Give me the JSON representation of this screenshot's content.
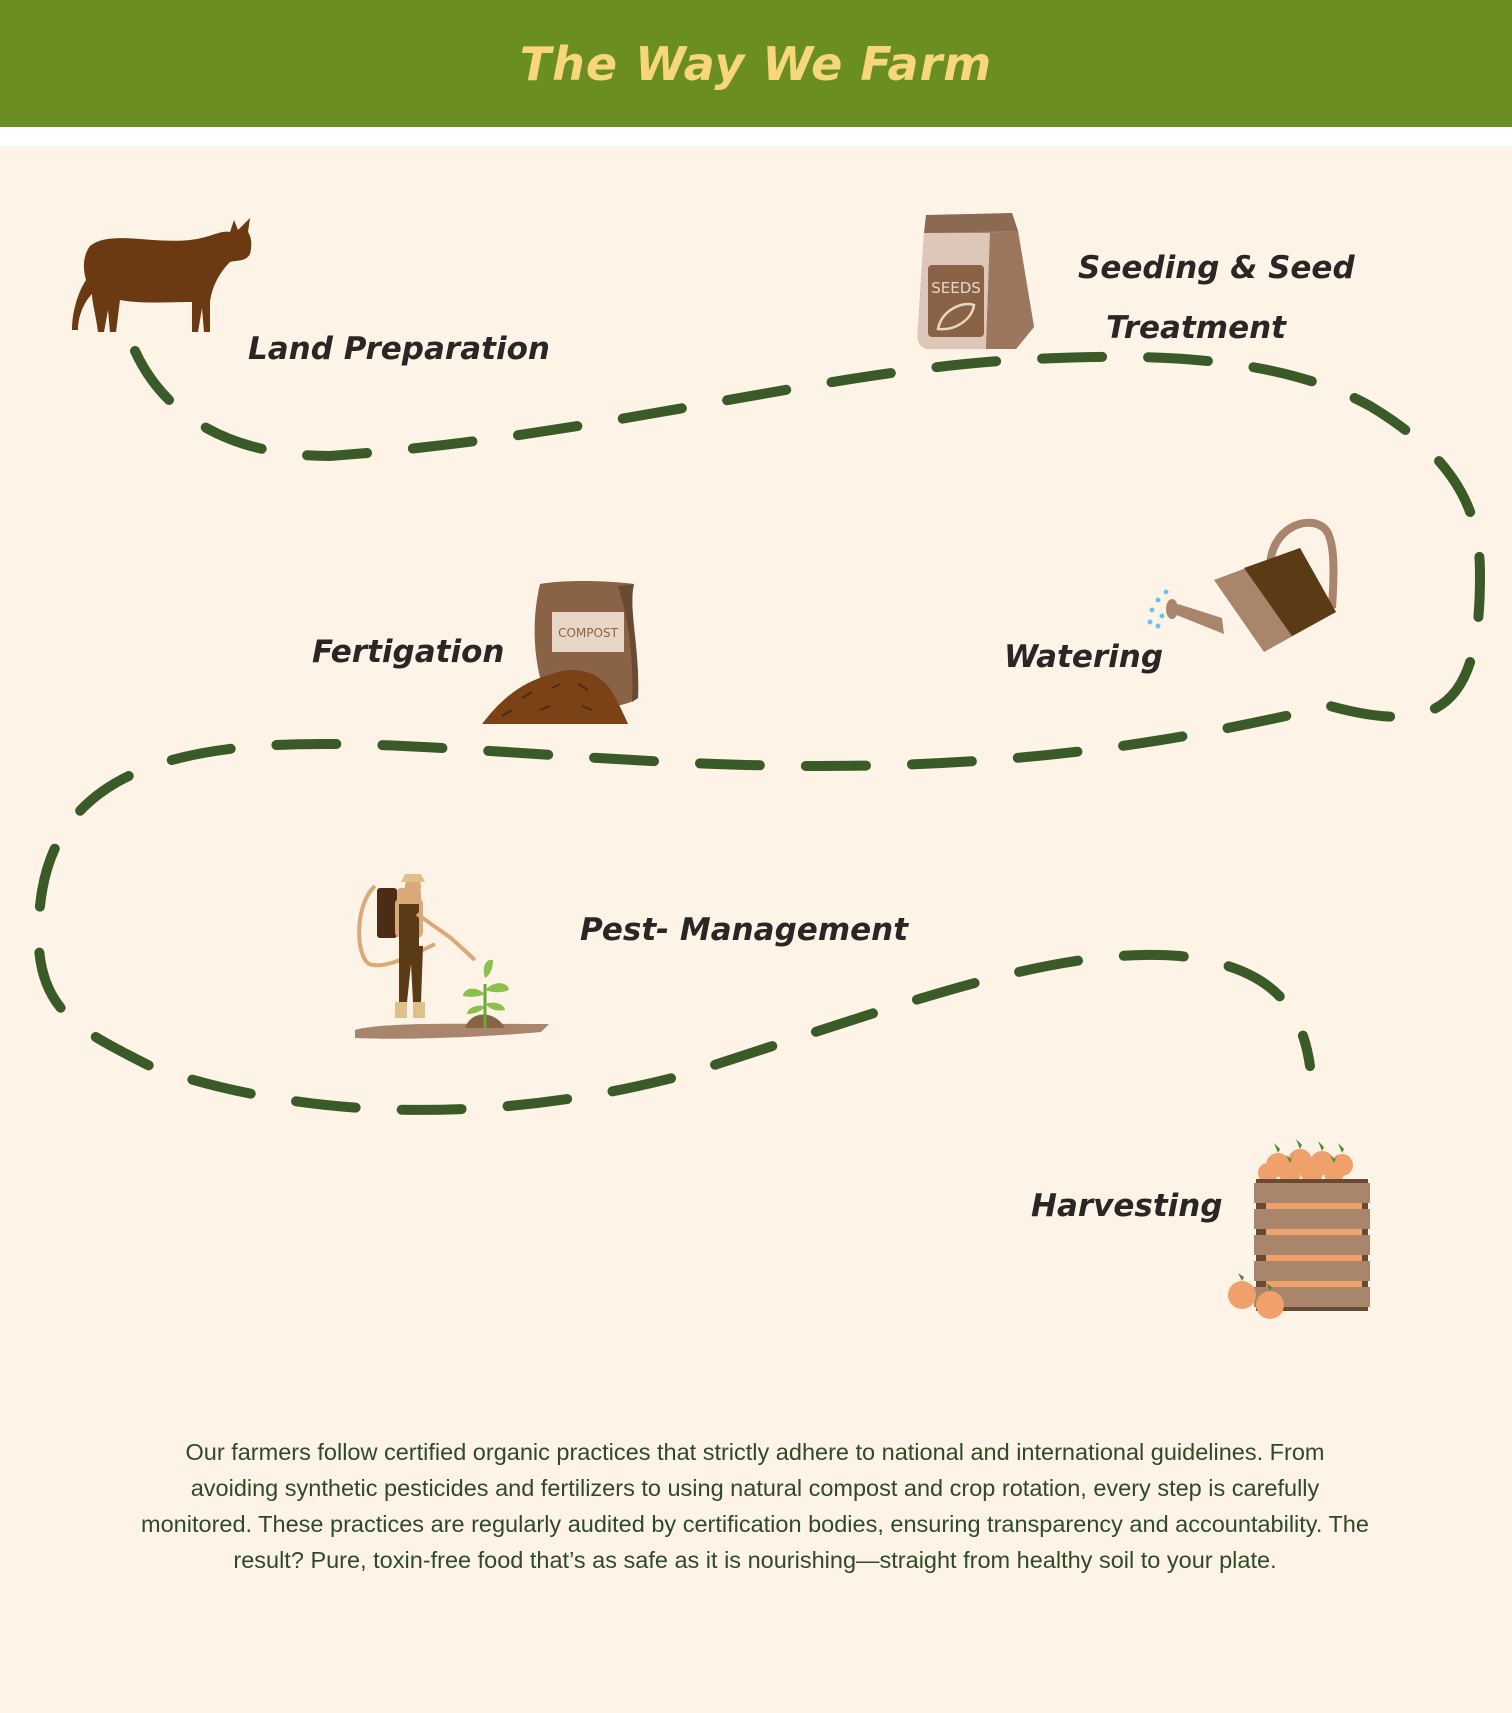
{
  "header": {
    "title": "The Way We Farm"
  },
  "steps": [
    {
      "label": "Land Preparation",
      "icon": "cow-icon"
    },
    {
      "label": "Seeding & Seed",
      "label2": "Treatment",
      "icon": "seed-bag-icon"
    },
    {
      "label": "Watering",
      "icon": "watering-can-icon"
    },
    {
      "label": "Fertigation",
      "icon": "compost-bag-icon"
    },
    {
      "label": "Pest- Management",
      "icon": "farmer-spraying-icon"
    },
    {
      "label": "Harvesting",
      "icon": "harvest-crate-icon"
    }
  ],
  "illustrations": {
    "seeds_text": "SEEDS",
    "compost_text": "COMPOST"
  },
  "description": "Our farmers follow certified organic practices that strictly adhere to national and international guidelines. From avoiding synthetic pesticides and fertilizers to using natural compost and crop rotation, every step is carefully monitored. These practices are regularly audited by certification bodies, ensuring transparency and accountability. The result? Pure, toxin-free food that’s as safe as it is nourishing—straight from healthy soil to your plate.",
  "colors": {
    "header_bg": "#6b8e23",
    "title": "#f7d77a",
    "page_bg": "#fdf3e7",
    "path": "#3a5a28",
    "brown": "#6b3a12"
  }
}
